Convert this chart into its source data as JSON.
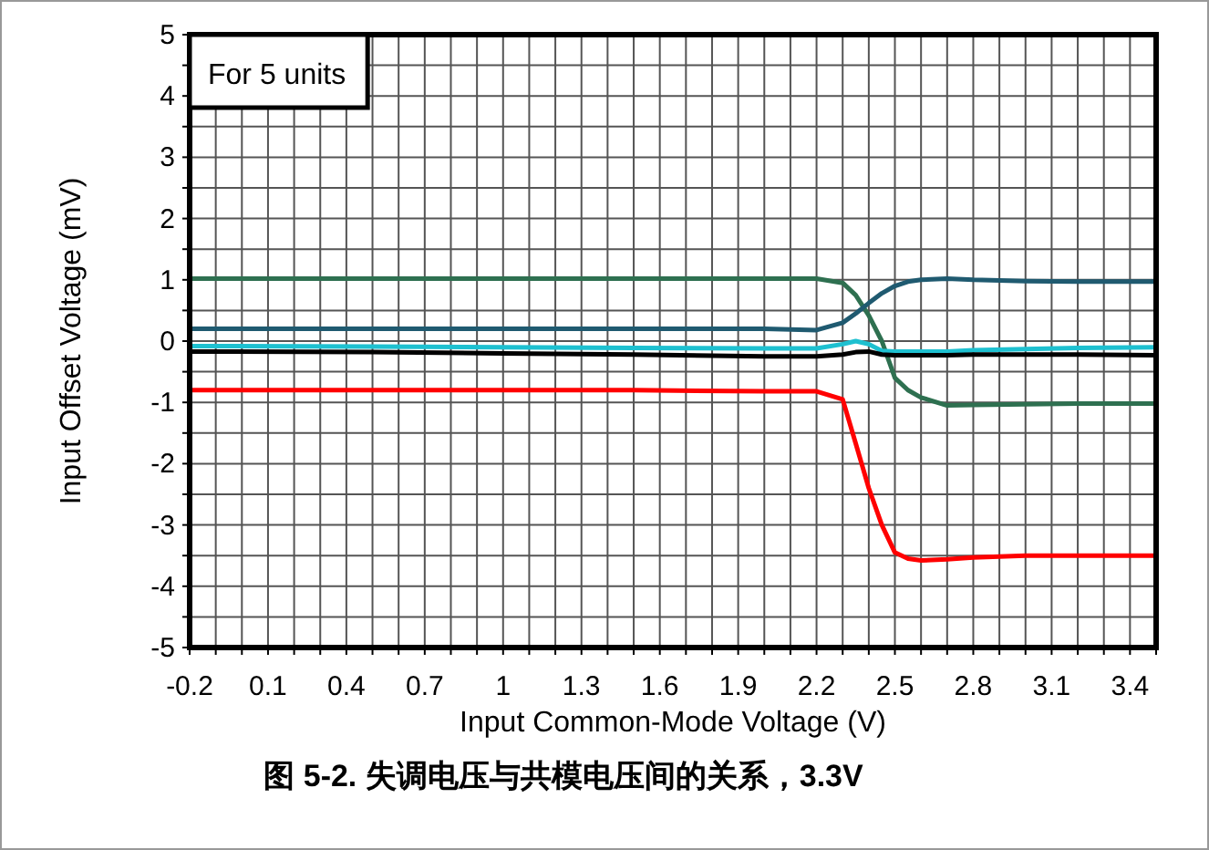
{
  "chart_data": {
    "type": "line",
    "title": "图 5-2. 失调电压与共模电压间的关系，3.3V",
    "xlabel": "Input Common-Mode Voltage (V)",
    "ylabel": "Input Offset Voltage (mV)",
    "annotations": [
      "For 5 units"
    ],
    "xlim": [
      -0.2,
      3.5
    ],
    "ylim": [
      -5,
      5
    ],
    "xticks": [
      -0.2,
      {
        "value": -0.1,
        "label": null
      },
      {
        "value": 0,
        "label": null
      },
      0.1,
      {
        "value": 0.2,
        "label": null
      },
      {
        "value": 0.3,
        "label": null
      },
      0.4,
      {
        "value": 0.5,
        "label": null
      },
      {
        "value": 0.6,
        "label": null
      },
      0.7,
      {
        "value": 0.8,
        "label": null
      },
      {
        "value": 0.9,
        "label": null
      },
      1,
      {
        "value": 1.1,
        "label": null
      },
      {
        "value": 1.2,
        "label": null
      },
      1.3,
      {
        "value": 1.4,
        "label": null
      },
      {
        "value": 1.5,
        "label": null
      },
      1.6,
      {
        "value": 1.7,
        "label": null
      },
      {
        "value": 1.8,
        "label": null
      },
      1.9,
      {
        "value": 2.0,
        "label": null
      },
      {
        "value": 2.1,
        "label": null
      },
      2.2,
      {
        "value": 2.3,
        "label": null
      },
      {
        "value": 2.4,
        "label": null
      },
      2.5,
      {
        "value": 2.6,
        "label": null
      },
      {
        "value": 2.7,
        "label": null
      },
      2.8,
      {
        "value": 2.9,
        "label": null
      },
      {
        "value": 3.0,
        "label": null
      },
      3.1,
      {
        "value": 3.2,
        "label": null
      },
      {
        "value": 3.3,
        "label": null
      },
      3.4,
      {
        "value": 3.5,
        "label": null
      }
    ],
    "yticks": [
      -5,
      {
        "value": -4.5,
        "label": null
      },
      -4,
      {
        "value": -3.5,
        "label": null
      },
      -3,
      {
        "value": -2.5,
        "label": null
      },
      -2,
      {
        "value": -1.5,
        "label": null
      },
      -1,
      {
        "value": -0.5,
        "label": null
      },
      0,
      {
        "value": 0.5,
        "label": null
      },
      1,
      {
        "value": 1.5,
        "label": null
      },
      2,
      {
        "value": 2.5,
        "label": null
      },
      3,
      {
        "value": 3.5,
        "label": null
      },
      4,
      {
        "value": 4.5,
        "label": null
      },
      5
    ],
    "grid": true,
    "marker": "none",
    "line_style": "solid",
    "x": [
      -0.2,
      0.5,
      1.0,
      1.5,
      2.0,
      2.2,
      2.3,
      2.35,
      2.4,
      2.45,
      2.5,
      2.55,
      2.6,
      2.7,
      2.8,
      3.0,
      3.2,
      3.5
    ],
    "series": [
      {
        "color": "#2e7050",
        "values": [
          1.02,
          1.02,
          1.02,
          1.02,
          1.02,
          1.02,
          0.95,
          0.75,
          0.42,
          0.0,
          -0.6,
          -0.8,
          -0.92,
          -1.05,
          -1.04,
          -1.03,
          -1.02,
          -1.02
        ]
      },
      {
        "color": "#1f5a70",
        "values": [
          0.2,
          0.2,
          0.2,
          0.2,
          0.2,
          0.18,
          0.3,
          0.45,
          0.62,
          0.78,
          0.9,
          0.97,
          1.0,
          1.02,
          1.0,
          0.98,
          0.97,
          0.97
        ]
      },
      {
        "color": "#1ec0d0",
        "values": [
          -0.08,
          -0.09,
          -0.1,
          -0.11,
          -0.12,
          -0.12,
          -0.05,
          0.0,
          -0.05,
          -0.16,
          -0.17,
          -0.17,
          -0.17,
          -0.17,
          -0.15,
          -0.13,
          -0.11,
          -0.1
        ]
      },
      {
        "color": "#000000",
        "values": [
          -0.17,
          -0.18,
          -0.2,
          -0.22,
          -0.25,
          -0.25,
          -0.22,
          -0.18,
          -0.17,
          -0.22,
          -0.23,
          -0.23,
          -0.23,
          -0.23,
          -0.22,
          -0.22,
          -0.22,
          -0.23
        ]
      },
      {
        "color": "#ff0000",
        "values": [
          -0.8,
          -0.8,
          -0.8,
          -0.8,
          -0.82,
          -0.82,
          -0.95,
          -1.67,
          -2.4,
          -3.0,
          -3.45,
          -3.55,
          -3.58,
          -3.56,
          -3.53,
          -3.5,
          -3.5,
          -3.5
        ]
      }
    ]
  }
}
